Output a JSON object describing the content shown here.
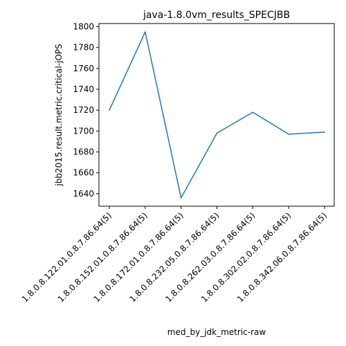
{
  "chart_data": {
    "type": "line",
    "title": "java-1.8.0vm_results_SPECJBB",
    "xlabel": "med_by_jdk_metric-raw",
    "ylabel": "jbb2015.result.metric.critical-jOPS",
    "categories": [
      "1.8.0.8.122.01.0.8.7.86.64(5)",
      "1.8.0.8.152.01.0.8.7.86.64(5)",
      "1.8.0.8.172.01.0.8.7.86.64(5)",
      "1.8.0.8.232.05.0.8.7.86.64(5)",
      "1.8.0.8.262.03.0.8.7.86.64(5)",
      "1.8.0.8.302.02.0.8.7.86.64(5)",
      "1.8.0.8.342.06.0.8.7.86.64(5)"
    ],
    "series": [
      {
        "values": [
          1720,
          1795,
          1636,
          1698,
          1718,
          1697,
          1699
        ],
        "color": "#1f77b4"
      }
    ],
    "ylim": [
      1628,
      1803
    ],
    "yticks": [
      1640,
      1660,
      1680,
      1700,
      1720,
      1740,
      1760,
      1780,
      1800
    ],
    "grid": false,
    "legend": "none"
  }
}
